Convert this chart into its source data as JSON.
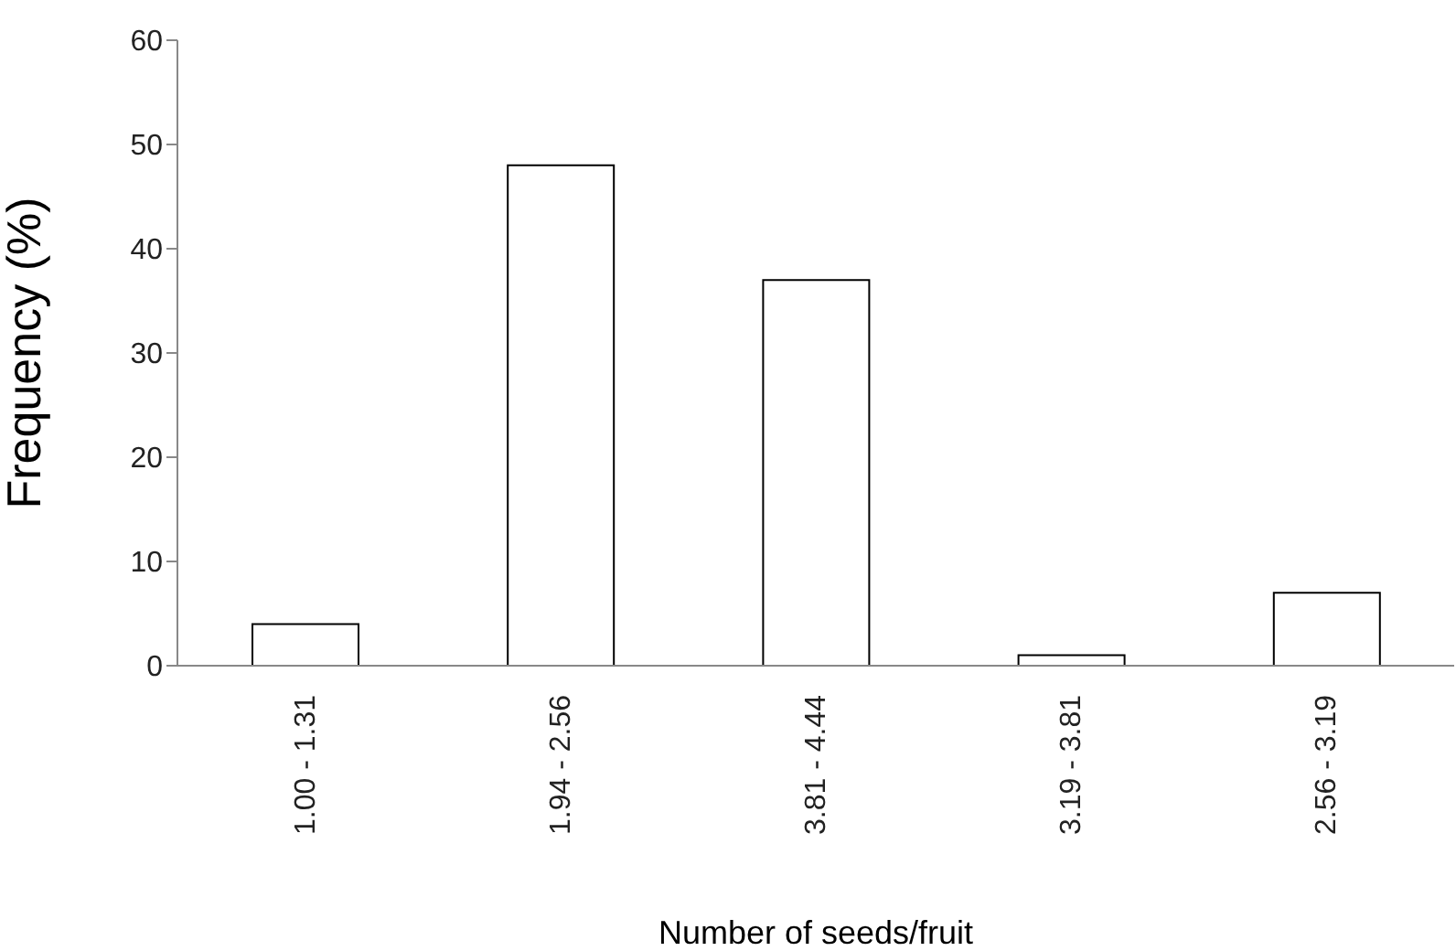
{
  "chart_data": {
    "type": "bar",
    "xlabel": "Number of seeds/fruit",
    "ylabel": "Frequency (%)",
    "categories": [
      "1.00 - 1.31",
      "1.94 - 2.56",
      "3.81 - 4.44",
      "3.19 - 3.81",
      "2.56 - 3.19"
    ],
    "values": [
      4,
      48,
      37,
      1,
      7
    ],
    "color": "#ffffff",
    "ylim": [
      0,
      60
    ],
    "yticks": [
      0,
      10,
      20,
      30,
      40,
      50,
      60
    ],
    "grid": false,
    "legend": false
  }
}
